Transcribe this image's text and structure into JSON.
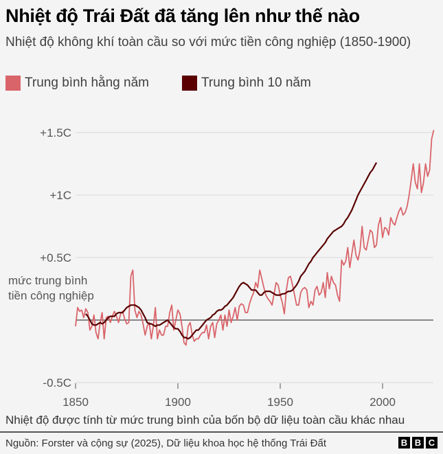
{
  "header": {
    "title": "Nhiệt độ Trái Đất đã tăng lên như thế nào",
    "subtitle": "Nhiệt độ không khí toàn cầu so với mức tiền công nghiệp (1850-1900)"
  },
  "legend": {
    "items": [
      {
        "label": "Trung bình hằng năm",
        "color": "#d9646a"
      },
      {
        "label": "Trung bình 10 năm",
        "color": "#5a0000"
      }
    ]
  },
  "annotation": {
    "line1": "mức trung bình",
    "line2": "tiền công nghiệp"
  },
  "footer": {
    "note": "Nhiệt độ được tính từ mức trung bình của bốn bộ dữ liệu toàn cầu khác nhau",
    "source": "Nguồn: Forster và cộng sự (2025), Dữ liệu khoa học hệ thống Trái Đất",
    "logo": [
      "B",
      "B",
      "C"
    ]
  },
  "chart_data": {
    "type": "line",
    "title": "Nhiệt độ Trái Đất đã tăng lên như thế nào",
    "subtitle": "Nhiệt độ không khí toàn cầu so với mức tiền công nghiệp (1850-1900)",
    "xlabel": "",
    "ylabel": "",
    "xlim": [
      1850,
      2025
    ],
    "ylim": [
      -0.5,
      1.55
    ],
    "x_ticks": [
      1850,
      1900,
      1950,
      2000
    ],
    "x_tick_labels": [
      "1850",
      "1900",
      "1950",
      "2000"
    ],
    "y_ticks": [
      -0.5,
      0,
      0.5,
      1,
      1.5
    ],
    "y_tick_labels": [
      "-0.5C",
      "",
      "+0.5C",
      "+1C",
      "+1.5C"
    ],
    "grid": "horizontal",
    "baseline_label": "mức trung bình tiền công nghiệp",
    "legend_position": "top-left",
    "series": [
      {
        "name": "Trung bình hằng năm",
        "color": "#d9646a",
        "x_start": 1850,
        "values": [
          -0.05,
          0.1,
          0.07,
          0.08,
          0.02,
          0.09,
          0.06,
          -0.08,
          -0.05,
          0.04,
          -0.1,
          -0.15,
          -0.02,
          0.06,
          -0.15,
          0.02,
          0.03,
          -0.02,
          0.03,
          0.07,
          0.03,
          -0.02,
          0.05,
          0.07,
          0.01,
          -0.03,
          -0.02,
          0.35,
          0.4,
          0.08,
          0.02,
          0.07,
          0.04,
          -0.03,
          -0.12,
          -0.05,
          -0.02,
          -0.15,
          -0.05,
          0.1,
          -0.15,
          -0.08,
          -0.12,
          -0.12,
          -0.05,
          -0.05,
          0.06,
          0.12,
          -0.08,
          0.0,
          0.08,
          0.05,
          -0.05,
          -0.18,
          -0.2,
          -0.05,
          -0.02,
          -0.12,
          -0.17,
          -0.15,
          -0.15,
          -0.12,
          -0.1,
          -0.1,
          -0.04,
          -0.15,
          -0.05,
          -0.02,
          -0.14,
          -0.03,
          0.0,
          0.04,
          -0.08,
          0.04,
          -0.05,
          0.08,
          -0.02,
          0.03,
          0.1,
          0.0,
          0.11,
          0.13,
          0.12,
          0.06,
          0.06,
          0.13,
          0.18,
          0.22,
          0.3,
          0.26,
          0.4,
          0.33,
          0.26,
          0.2,
          0.17,
          0.15,
          0.12,
          0.21,
          0.3,
          0.28,
          0.2,
          0.14,
          0.05,
          0.24,
          0.34,
          0.35,
          0.28,
          0.2,
          0.12,
          0.12,
          0.22,
          0.25,
          0.26,
          0.24,
          0.1,
          0.15,
          0.12,
          0.24,
          0.27,
          0.2,
          0.22,
          0.3,
          0.18,
          0.38,
          0.25,
          0.35,
          0.3,
          0.28,
          0.2,
          0.15,
          0.48,
          0.44,
          0.47,
          0.58,
          0.42,
          0.53,
          0.64,
          0.52,
          0.48,
          0.56,
          0.75,
          0.58,
          0.56,
          0.64,
          0.72,
          0.7,
          0.58,
          0.6,
          0.76,
          0.82,
          0.66,
          0.74,
          0.73,
          0.68,
          0.82,
          0.78,
          0.76,
          0.82,
          0.87,
          0.9,
          0.84,
          0.86,
          0.91,
          1.0,
          1.12,
          1.25,
          1.1,
          1.05,
          1.25,
          1.02,
          1.1,
          1.25,
          1.15,
          1.2,
          1.45,
          1.52
        ]
      },
      {
        "name": "Trung bình 10 năm",
        "color": "#5a0000",
        "x_start": 1855,
        "values": [
          0.05,
          0.03,
          0.0,
          -0.03,
          -0.04,
          -0.04,
          -0.03,
          -0.02,
          -0.03,
          -0.02,
          0.0,
          0.02,
          0.03,
          0.03,
          0.03,
          0.05,
          0.06,
          0.06,
          0.06,
          0.08,
          0.1,
          0.11,
          0.12,
          0.12,
          0.12,
          0.11,
          0.1,
          0.08,
          0.05,
          0.02,
          -0.02,
          -0.03,
          -0.03,
          -0.04,
          -0.05,
          -0.04,
          -0.04,
          -0.03,
          -0.02,
          -0.01,
          0.0,
          -0.02,
          -0.04,
          -0.06,
          -0.07,
          -0.07,
          -0.09,
          -0.12,
          -0.14,
          -0.14,
          -0.15,
          -0.14,
          -0.12,
          -0.1,
          -0.08,
          -0.08,
          -0.06,
          -0.04,
          -0.02,
          0.0,
          0.01,
          0.02,
          0.04,
          0.05,
          0.07,
          0.08,
          0.08,
          0.09,
          0.11,
          0.12,
          0.14,
          0.16,
          0.18,
          0.21,
          0.24,
          0.27,
          0.29,
          0.3,
          0.29,
          0.28,
          0.26,
          0.24,
          0.24,
          0.24,
          0.22,
          0.2,
          0.2,
          0.22,
          0.23,
          0.23,
          0.23,
          0.22,
          0.21,
          0.2,
          0.2,
          0.2,
          0.21,
          0.21,
          0.22,
          0.23,
          0.23,
          0.24,
          0.26,
          0.28,
          0.31,
          0.35,
          0.37,
          0.39,
          0.42,
          0.45,
          0.47,
          0.5,
          0.52,
          0.54,
          0.56,
          0.58,
          0.6,
          0.62,
          0.65,
          0.67,
          0.69,
          0.71,
          0.72,
          0.73,
          0.74,
          0.75,
          0.77,
          0.8,
          0.82,
          0.85,
          0.88,
          0.92,
          0.96,
          1.0,
          1.03,
          1.06,
          1.09,
          1.12,
          1.15,
          1.18,
          1.2,
          1.23,
          1.26
        ]
      }
    ]
  }
}
